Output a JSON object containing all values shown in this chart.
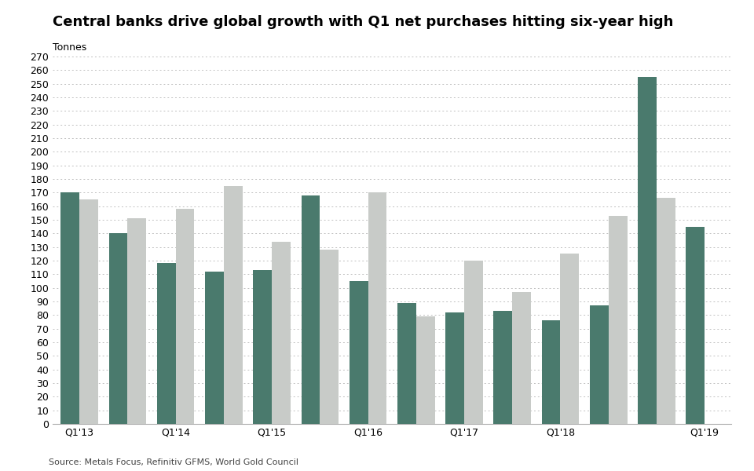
{
  "title": "Central banks drive global growth with Q1 net purchases hitting six-year high",
  "ylabel": "Tonnes",
  "source": "Source: Metals Focus, Refinitiv GFMS, World Gold Council",
  "bar_dark_color": "#4a7a6d",
  "bar_light_color": "#c8cbc8",
  "background_color": "#ffffff",
  "grid_color": "#c0c0c0",
  "bar_pairs": [
    {
      "dark": 170,
      "light": 165,
      "label": "Q1'13"
    },
    {
      "dark": 140,
      "light": 151,
      "label": ""
    },
    {
      "dark": 118,
      "light": 158,
      "label": "Q1'14"
    },
    {
      "dark": 112,
      "light": 175,
      "label": ""
    },
    {
      "dark": 113,
      "light": 134,
      "label": "Q1'15"
    },
    {
      "dark": 168,
      "light": 128,
      "label": ""
    },
    {
      "dark": 105,
      "light": 170,
      "label": "Q1'16"
    },
    {
      "dark": 89,
      "light": 79,
      "label": ""
    },
    {
      "dark": 82,
      "light": 120,
      "label": "Q1'17"
    },
    {
      "dark": 83,
      "light": 97,
      "label": ""
    },
    {
      "dark": 76,
      "light": 125,
      "label": "Q1'18"
    },
    {
      "dark": 87,
      "light": 153,
      "label": ""
    },
    {
      "dark": 255,
      "light": 166,
      "label": ""
    },
    {
      "dark": 145,
      "light": 0,
      "label": "Q1'19"
    }
  ],
  "ylim": [
    0,
    270
  ],
  "ytick_step": 10,
  "title_fontsize": 13,
  "tick_fontsize": 9,
  "source_fontsize": 8
}
